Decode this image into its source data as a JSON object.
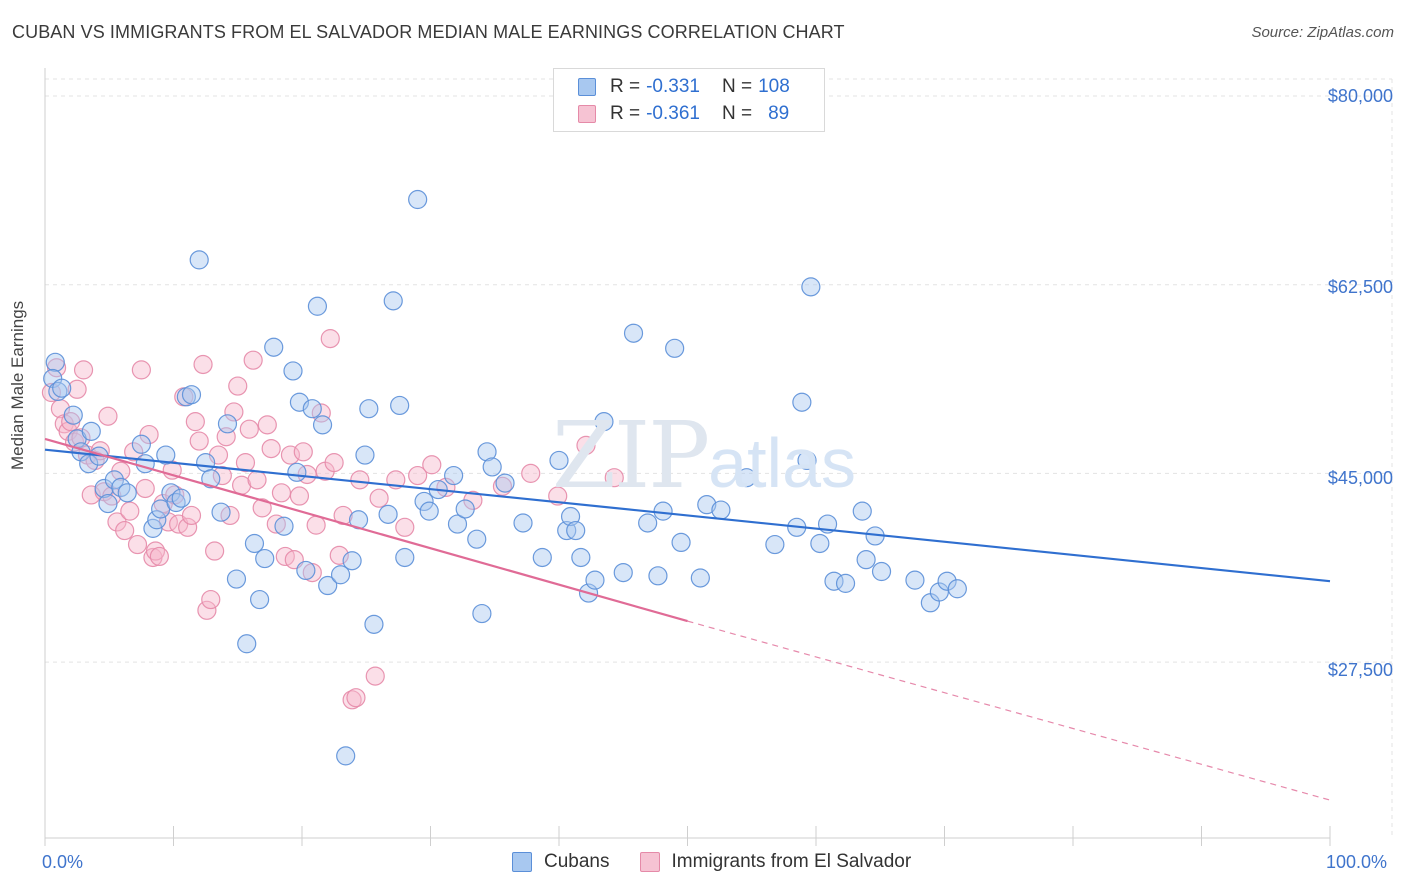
{
  "header": {
    "title": "CUBAN VS IMMIGRANTS FROM EL SALVADOR MEDIAN MALE EARNINGS CORRELATION CHART",
    "source": "Source: ZipAtlas.com"
  },
  "watermark": {
    "zip": "ZIP",
    "atlas": "atlas"
  },
  "legend_top": {
    "rows": [
      {
        "r_label": "R =",
        "r_value": "-0.331",
        "n_label": "N =",
        "n_value": "108"
      },
      {
        "r_label": "R =",
        "r_value": "-0.361",
        "n_label": "N =",
        "n_value": "89"
      }
    ]
  },
  "colors": {
    "blue_fill": "#a8c8f0",
    "blue_stroke": "#5b8fd8",
    "blue_line": "#2f6fd0",
    "pink_fill": "#f6b8cb",
    "pink_stroke": "#e58aa8",
    "pink_line": "#e06b96",
    "axis_text": "#3f74cc"
  },
  "chart_data": {
    "type": "scatter",
    "title": "CUBAN VS IMMIGRANTS FROM EL SALVADOR MEDIAN MALE EARNINGS CORRELATION CHART",
    "xlabel": "",
    "ylabel": "Median Male Earnings",
    "xlim": [
      0,
      100
    ],
    "ylim": [
      11000,
      82000
    ],
    "x_tick_labels": [
      "0.0%",
      "100.0%"
    ],
    "y_ticks": [
      27500,
      45000,
      62500,
      80000
    ],
    "y_tick_labels": [
      "$27,500",
      "$45,000",
      "$62,500",
      "$80,000"
    ],
    "series": [
      {
        "name": "Cubans",
        "r": -0.331,
        "n": 108,
        "trend": {
          "x0": 0,
          "y0": 47200,
          "x1": 100,
          "y1": 35000
        },
        "points": [
          [
            0.8,
            55.3
          ],
          [
            0.6,
            53.8
          ],
          [
            1.0,
            52.6
          ],
          [
            1.3,
            52.9
          ],
          [
            2.2,
            50.4
          ],
          [
            2.5,
            48.2
          ],
          [
            2.8,
            47.0
          ],
          [
            3.6,
            48.9
          ],
          [
            3.4,
            45.9
          ],
          [
            4.2,
            46.6
          ],
          [
            4.6,
            43.6
          ],
          [
            4.9,
            42.2
          ],
          [
            5.4,
            44.4
          ],
          [
            5.9,
            43.7
          ],
          [
            6.4,
            43.2
          ],
          [
            7.5,
            47.7
          ],
          [
            7.8,
            45.9
          ],
          [
            8.4,
            39.9
          ],
          [
            8.7,
            40.7
          ],
          [
            9.0,
            41.7
          ],
          [
            9.4,
            46.7
          ],
          [
            9.8,
            43.2
          ],
          [
            10.2,
            42.3
          ],
          [
            10.6,
            42.7
          ],
          [
            11.0,
            52.1
          ],
          [
            11.4,
            52.3
          ],
          [
            12.0,
            64.8
          ],
          [
            12.5,
            46.0
          ],
          [
            12.9,
            44.5
          ],
          [
            13.7,
            41.4
          ],
          [
            14.2,
            49.6
          ],
          [
            14.9,
            35.2
          ],
          [
            15.7,
            29.2
          ],
          [
            16.3,
            38.5
          ],
          [
            16.7,
            33.3
          ],
          [
            17.1,
            37.1
          ],
          [
            17.8,
            56.7
          ],
          [
            18.6,
            40.1
          ],
          [
            19.3,
            54.5
          ],
          [
            19.6,
            45.1
          ],
          [
            19.8,
            51.6
          ],
          [
            20.3,
            36.0
          ],
          [
            20.8,
            51.0
          ],
          [
            21.2,
            60.5
          ],
          [
            21.6,
            49.5
          ],
          [
            22.0,
            34.6
          ],
          [
            23.0,
            35.6
          ],
          [
            23.4,
            18.8
          ],
          [
            23.9,
            36.9
          ],
          [
            24.4,
            40.7
          ],
          [
            24.9,
            46.7
          ],
          [
            25.2,
            51.0
          ],
          [
            25.6,
            31.0
          ],
          [
            26.7,
            41.2
          ],
          [
            27.1,
            61.0
          ],
          [
            27.6,
            51.3
          ],
          [
            28.0,
            37.2
          ],
          [
            29.0,
            70.4
          ],
          [
            29.5,
            42.4
          ],
          [
            29.9,
            41.5
          ],
          [
            30.6,
            43.5
          ],
          [
            31.8,
            44.8
          ],
          [
            32.1,
            40.3
          ],
          [
            32.7,
            41.7
          ],
          [
            33.6,
            38.9
          ],
          [
            34.0,
            32.0
          ],
          [
            34.4,
            47.0
          ],
          [
            34.8,
            45.6
          ],
          [
            35.8,
            44.1
          ],
          [
            37.2,
            40.4
          ],
          [
            38.7,
            37.2
          ],
          [
            40.0,
            46.2
          ],
          [
            40.6,
            39.7
          ],
          [
            40.9,
            41.0
          ],
          [
            41.3,
            39.7
          ],
          [
            41.7,
            37.2
          ],
          [
            42.3,
            33.9
          ],
          [
            42.8,
            35.1
          ],
          [
            43.5,
            49.8
          ],
          [
            45.0,
            35.8
          ],
          [
            45.8,
            58.0
          ],
          [
            46.9,
            40.4
          ],
          [
            47.7,
            35.5
          ],
          [
            48.1,
            41.5
          ],
          [
            49.0,
            56.6
          ],
          [
            49.5,
            38.6
          ],
          [
            51.0,
            35.3
          ],
          [
            51.5,
            42.1
          ],
          [
            52.6,
            41.6
          ],
          [
            54.6,
            44.6
          ],
          [
            56.8,
            38.4
          ],
          [
            58.5,
            40.0
          ],
          [
            58.9,
            51.6
          ],
          [
            59.3,
            46.2
          ],
          [
            59.6,
            62.3
          ],
          [
            60.3,
            38.5
          ],
          [
            60.9,
            40.3
          ],
          [
            61.4,
            35.0
          ],
          [
            62.3,
            34.8
          ],
          [
            63.6,
            41.5
          ],
          [
            63.9,
            37.0
          ],
          [
            64.6,
            39.2
          ],
          [
            65.1,
            35.9
          ],
          [
            67.7,
            35.1
          ],
          [
            68.9,
            33.0
          ],
          [
            69.6,
            34.0
          ],
          [
            70.2,
            35.0
          ],
          [
            71.0,
            34.3
          ]
        ]
      },
      {
        "name": "Immigrants from El Salvador",
        "r": -0.361,
        "n": 89,
        "trend": {
          "x0": 0,
          "y0": 48200,
          "x1": 50,
          "y1": 31300,
          "dash_x1": 100,
          "dash_y1": 14700
        },
        "points": [
          [
            0.5,
            52.5
          ],
          [
            0.9,
            54.8
          ],
          [
            1.2,
            51.0
          ],
          [
            1.5,
            49.6
          ],
          [
            1.8,
            48.9
          ],
          [
            2.0,
            49.8
          ],
          [
            2.3,
            47.9
          ],
          [
            2.5,
            52.8
          ],
          [
            2.8,
            48.3
          ],
          [
            3.0,
            54.6
          ],
          [
            3.3,
            46.7
          ],
          [
            3.6,
            43.0
          ],
          [
            3.9,
            46.2
          ],
          [
            4.3,
            47.1
          ],
          [
            4.6,
            43.3
          ],
          [
            4.9,
            50.3
          ],
          [
            5.2,
            42.9
          ],
          [
            5.6,
            40.5
          ],
          [
            5.9,
            45.2
          ],
          [
            6.2,
            39.7
          ],
          [
            6.6,
            41.5
          ],
          [
            6.9,
            47.0
          ],
          [
            7.2,
            38.4
          ],
          [
            7.5,
            54.6
          ],
          [
            7.8,
            43.6
          ],
          [
            8.1,
            48.6
          ],
          [
            8.4,
            37.2
          ],
          [
            8.6,
            37.8
          ],
          [
            8.9,
            37.3
          ],
          [
            9.2,
            42.2
          ],
          [
            9.6,
            40.5
          ],
          [
            9.9,
            45.3
          ],
          [
            10.1,
            43.0
          ],
          [
            10.4,
            40.3
          ],
          [
            10.8,
            52.1
          ],
          [
            11.1,
            40.0
          ],
          [
            11.4,
            41.1
          ],
          [
            11.7,
            49.8
          ],
          [
            12.0,
            48.0
          ],
          [
            12.3,
            55.1
          ],
          [
            12.6,
            32.3
          ],
          [
            12.9,
            33.3
          ],
          [
            13.2,
            37.8
          ],
          [
            13.5,
            46.7
          ],
          [
            13.8,
            44.8
          ],
          [
            14.1,
            48.4
          ],
          [
            14.4,
            41.1
          ],
          [
            14.7,
            50.7
          ],
          [
            15.0,
            53.1
          ],
          [
            15.3,
            43.9
          ],
          [
            15.6,
            46.0
          ],
          [
            15.9,
            49.1
          ],
          [
            16.2,
            55.5
          ],
          [
            16.5,
            44.4
          ],
          [
            16.9,
            41.8
          ],
          [
            17.3,
            49.5
          ],
          [
            17.6,
            47.3
          ],
          [
            18.0,
            40.3
          ],
          [
            18.4,
            43.2
          ],
          [
            18.7,
            37.3
          ],
          [
            19.1,
            46.7
          ],
          [
            19.4,
            37.0
          ],
          [
            19.8,
            42.9
          ],
          [
            20.1,
            47.0
          ],
          [
            20.4,
            44.9
          ],
          [
            20.8,
            35.8
          ],
          [
            21.1,
            40.2
          ],
          [
            21.5,
            50.6
          ],
          [
            21.8,
            45.2
          ],
          [
            22.2,
            57.5
          ],
          [
            22.5,
            46.0
          ],
          [
            22.9,
            37.4
          ],
          [
            23.2,
            41.1
          ],
          [
            23.9,
            24.0
          ],
          [
            24.2,
            24.2
          ],
          [
            24.5,
            44.4
          ],
          [
            25.7,
            26.2
          ],
          [
            26.0,
            42.7
          ],
          [
            27.3,
            44.4
          ],
          [
            28.0,
            40.0
          ],
          [
            29.0,
            44.8
          ],
          [
            30.1,
            45.8
          ],
          [
            31.2,
            43.7
          ],
          [
            33.3,
            42.5
          ],
          [
            35.6,
            43.8
          ],
          [
            37.8,
            45.0
          ],
          [
            39.9,
            42.9
          ],
          [
            42.1,
            47.6
          ],
          [
            44.3,
            44.6
          ]
        ]
      }
    ]
  },
  "bottom_legend": [
    {
      "label": "Cubans"
    },
    {
      "label": "Immigrants from El Salvador"
    }
  ]
}
